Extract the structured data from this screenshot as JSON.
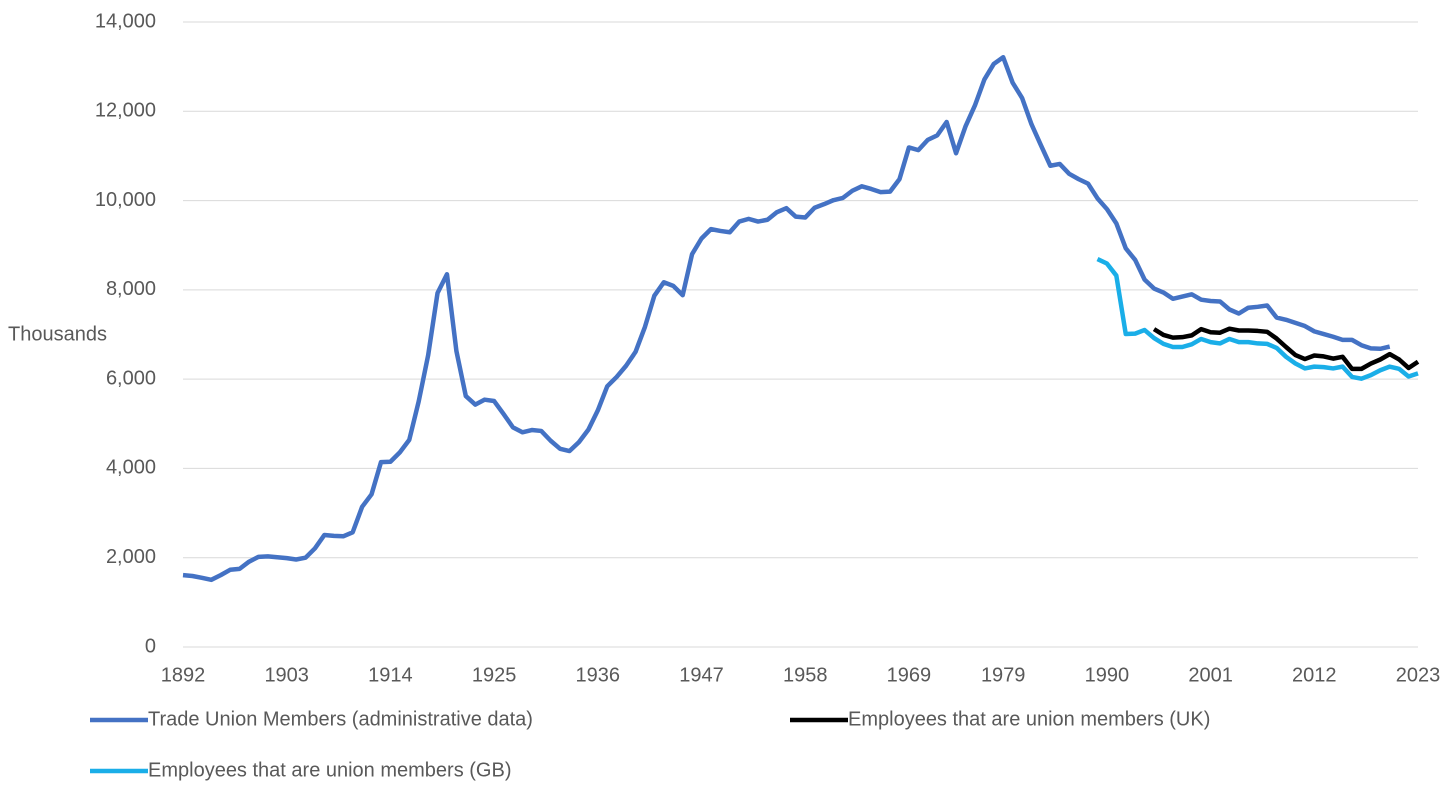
{
  "chart_data": {
    "type": "line",
    "y_label": "Thousands",
    "xlim": [
      1892,
      2023
    ],
    "xticks": [
      1892,
      1903,
      1914,
      1925,
      1936,
      1947,
      1958,
      1969,
      1979,
      1990,
      2001,
      2012,
      2023
    ],
    "ylim": [
      0,
      14000
    ],
    "yticks": [
      0,
      {
        "value": 2000,
        "label": "2,000"
      },
      {
        "value": 4000,
        "label": "4,000"
      },
      {
        "value": 6000,
        "label": "6,000"
      },
      {
        "value": 8000,
        "label": "8,000"
      },
      {
        "value": 10000,
        "label": "10,000"
      },
      {
        "value": 12000,
        "label": "12,000"
      },
      {
        "value": 14000,
        "label": "14,000"
      }
    ],
    "grid": true,
    "legend": "bottom",
    "series": [
      {
        "name": "Trade Union Members (administrative data)",
        "color": "#4472c4",
        "x": [
          1892,
          1893,
          1894,
          1895,
          1896,
          1897,
          1898,
          1899,
          1900,
          1901,
          1902,
          1903,
          1904,
          1905,
          1906,
          1907,
          1908,
          1909,
          1910,
          1911,
          1912,
          1913,
          1914,
          1915,
          1916,
          1917,
          1918,
          1919,
          1920,
          1921,
          1922,
          1923,
          1924,
          1925,
          1926,
          1927,
          1928,
          1929,
          1930,
          1931,
          1932,
          1933,
          1934,
          1935,
          1936,
          1937,
          1938,
          1939,
          1940,
          1941,
          1942,
          1943,
          1944,
          1945,
          1946,
          1947,
          1948,
          1949,
          1950,
          1951,
          1952,
          1953,
          1954,
          1955,
          1956,
          1957,
          1958,
          1959,
          1960,
          1961,
          1962,
          1963,
          1964,
          1965,
          1966,
          1967,
          1968,
          1969,
          1970,
          1971,
          1972,
          1973,
          1974,
          1975,
          1976,
          1977,
          1978,
          1979,
          1980,
          1981,
          1982,
          1983,
          1984,
          1985,
          1986,
          1987,
          1988,
          1989,
          1990,
          1991,
          1992,
          1993,
          1994,
          1995,
          1996,
          1997,
          1998,
          1999,
          2000,
          2001,
          2002,
          2003,
          2004,
          2005,
          2006,
          2007,
          2008,
          2009,
          2010,
          2011,
          2012,
          2013,
          2014,
          2015,
          2016,
          2017,
          2018,
          2019,
          2020
        ],
        "values": [
          1610,
          1590,
          1550,
          1505,
          1610,
          1730,
          1750,
          1910,
          2020,
          2030,
          2010,
          1990,
          1960,
          2000,
          2210,
          2510,
          2490,
          2480,
          2570,
          3140,
          3420,
          4140,
          4150,
          4360,
          4640,
          5500,
          6530,
          7930,
          8350,
          6630,
          5620,
          5430,
          5540,
          5510,
          5220,
          4920,
          4810,
          4860,
          4840,
          4620,
          4440,
          4390,
          4590,
          4870,
          5300,
          5840,
          6050,
          6300,
          6610,
          7170,
          7870,
          8170,
          8090,
          7880,
          8800,
          9150,
          9360,
          9320,
          9290,
          9530,
          9590,
          9530,
          9570,
          9740,
          9830,
          9640,
          9620,
          9840,
          9920,
          10010,
          10060,
          10220,
          10320,
          10260,
          10190,
          10200,
          10480,
          11190,
          11130,
          11360,
          11460,
          11760,
          11060,
          11660,
          12130,
          12710,
          13060,
          13210,
          12640,
          12300,
          11710,
          11240,
          10780,
          10820,
          10600,
          10480,
          10380,
          10050,
          9810,
          9490,
          8930,
          8670,
          8230,
          8030,
          7940,
          7800,
          7850,
          7900,
          7780,
          7750,
          7740,
          7560,
          7470,
          7600,
          7620,
          7650,
          7380,
          7330,
          7260,
          7190,
          7070,
          7010,
          6950,
          6880,
          6880,
          6760,
          6690,
          6680,
          6730
        ]
      },
      {
        "name": "Employees that are union members (UK)",
        "color": "#000000",
        "x": [
          1995,
          1996,
          1997,
          1998,
          1999,
          2000,
          2001,
          2002,
          2003,
          2004,
          2005,
          2006,
          2007,
          2008,
          2009,
          2010,
          2011,
          2012,
          2013,
          2014,
          2015,
          2016,
          2017,
          2018,
          2019,
          2020,
          2021,
          2022,
          2023
        ],
        "values": [
          7120,
          6990,
          6930,
          6940,
          6980,
          7120,
          7050,
          7040,
          7130,
          7090,
          7090,
          7080,
          7060,
          6910,
          6720,
          6540,
          6450,
          6530,
          6510,
          6460,
          6500,
          6230,
          6230,
          6350,
          6440,
          6560,
          6440,
          6250,
          6390
        ]
      },
      {
        "name": "Employees that are union members (GB)",
        "color": "#1aaee8",
        "x": [
          1989,
          1990,
          1991,
          1992,
          1993,
          1994,
          1995,
          1996,
          1997,
          1998,
          1999,
          2000,
          2001,
          2002,
          2003,
          2004,
          2005,
          2006,
          2007,
          2008,
          2009,
          2010,
          2011,
          2012,
          2013,
          2014,
          2015,
          2016,
          2017,
          2018,
          2019,
          2020,
          2021,
          2022,
          2023
        ],
        "values": [
          8690,
          8590,
          8320,
          7010,
          7020,
          7100,
          6920,
          6790,
          6720,
          6720,
          6780,
          6900,
          6830,
          6800,
          6900,
          6830,
          6830,
          6800,
          6790,
          6700,
          6500,
          6350,
          6240,
          6280,
          6270,
          6240,
          6280,
          6050,
          6010,
          6090,
          6200,
          6280,
          6230,
          6060,
          6130
        ]
      }
    ]
  }
}
